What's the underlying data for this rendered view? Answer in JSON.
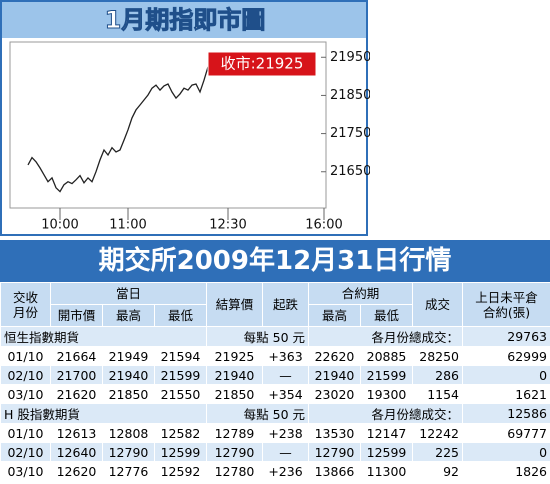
{
  "chart_data": {
    "type": "line",
    "title": "1月期指即市圖",
    "annotation": "收市:21925",
    "categories": [
      null,
      null,
      null,
      null,
      null,
      null,
      null,
      null,
      null,
      null,
      null,
      null,
      "10:00",
      null,
      null,
      null,
      null,
      null,
      null,
      null,
      null,
      null,
      null,
      null,
      null,
      null,
      null,
      null,
      null,
      "11:00",
      null,
      null,
      null,
      null,
      null,
      null,
      null,
      null,
      null,
      null,
      null,
      null,
      null,
      null,
      null,
      null,
      null,
      null,
      null,
      null,
      null,
      null,
      null,
      null,
      "12:30",
      null,
      null,
      null,
      null,
      null,
      null,
      null,
      null,
      null,
      null,
      null,
      null,
      null,
      null,
      null,
      null,
      null,
      null,
      null,
      null,
      null,
      null,
      null,
      "16:00"
    ],
    "values": [
      null,
      null,
      null,
      null,
      21668,
      21687,
      21676,
      21660,
      21642,
      21624,
      21634,
      21608,
      21598,
      21616,
      21624,
      21619,
      21629,
      21640,
      21621,
      21634,
      21624,
      21650,
      21681,
      21707,
      21694,
      21713,
      21702,
      21707,
      21733,
      21760,
      21791,
      21812,
      21825,
      21838,
      21851,
      21869,
      21877,
      21864,
      21875,
      21880,
      21859,
      21843,
      21854,
      21869,
      21864,
      21877,
      21880,
      21859,
      21890,
      21925,
      null,
      null,
      null,
      null,
      null,
      null,
      null,
      null,
      null,
      null,
      null,
      null,
      null,
      null,
      null,
      null,
      null,
      null,
      null,
      null,
      null,
      null,
      null,
      null,
      null,
      null,
      null,
      null,
      null
    ],
    "color": "#222222",
    "ylim": [
      21555,
      21990
    ],
    "yticks": [
      21650,
      21750,
      21850,
      21950
    ],
    "grid": false
  },
  "table": {
    "title": "期交所2009年12月31日行情",
    "header": {
      "month": [
        "交收",
        "月份"
      ],
      "day": "當日",
      "day_cols": [
        "開市價",
        "最高",
        "最低"
      ],
      "settle": "結算價",
      "change": "起跌",
      "contract": "合約期",
      "contract_cols": [
        "最高",
        "最低"
      ],
      "volume": "成交",
      "open_interest": [
        "上日未平倉",
        "合約(張)"
      ]
    },
    "groups": [
      {
        "name": "恒生指數期貨",
        "point_value": "每點 50 元",
        "total_label": "各月份總成交：",
        "total": "29763",
        "rows": [
          [
            "01/10",
            "21664",
            "21949",
            "21594",
            "21925",
            "+363",
            "22620",
            "20885",
            "28250",
            "62999"
          ],
          [
            "02/10",
            "21700",
            "21940",
            "21599",
            "21940",
            "—",
            "21940",
            "21599",
            "286",
            "0"
          ],
          [
            "03/10",
            "21620",
            "21850",
            "21550",
            "21850",
            "+354",
            "23020",
            "19300",
            "1154",
            "1621"
          ]
        ]
      },
      {
        "name": "H 股指數期貨",
        "point_value": "每點 50 元",
        "total_label": "各月份總成交：",
        "total": "12586",
        "rows": [
          [
            "01/10",
            "12613",
            "12808",
            "12582",
            "12789",
            "+238",
            "13530",
            "12147",
            "12242",
            "69777"
          ],
          [
            "02/10",
            "12640",
            "12790",
            "12599",
            "12790",
            "—",
            "12790",
            "12599",
            "225",
            "0"
          ],
          [
            "03/10",
            "12620",
            "12776",
            "12592",
            "12780",
            "+236",
            "13866",
            "11300",
            "92",
            "1826"
          ]
        ]
      }
    ]
  }
}
